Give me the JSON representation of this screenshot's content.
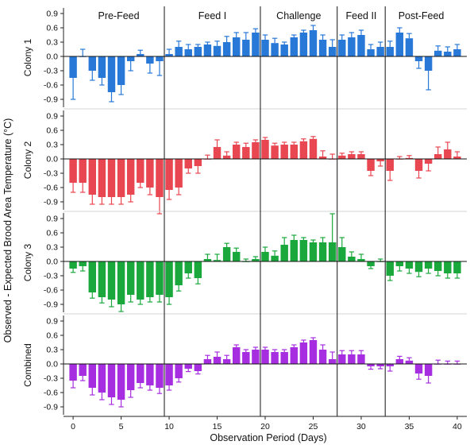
{
  "chart_data": {
    "type": "bar",
    "ylabel": "Observed - Expected Brood Area Temperature (°C)",
    "xlabel": "Observation Period (Days)",
    "xlim": [
      -1,
      41
    ],
    "ylim": [
      -1.1,
      1.05
    ],
    "yticks": [
      0.9,
      0.6,
      0.3,
      0.0,
      -0.3,
      -0.6,
      -0.9
    ],
    "ytick_labels": [
      "0.9",
      "0.6",
      "0.3",
      "0.0",
      "-0.3",
      "-0.6",
      "-0.9"
    ],
    "xticks": [
      0,
      5,
      10,
      15,
      20,
      25,
      30,
      35,
      40
    ],
    "xtick_labels": [
      "0",
      "5",
      "10",
      "15",
      "20",
      "25",
      "30",
      "35",
      "40"
    ],
    "phase_boundaries": [
      9.5,
      19.5,
      27.5,
      32.5
    ],
    "phases": [
      {
        "label": "Pre-Feed",
        "center": 4.75
      },
      {
        "label": "Feed I",
        "center": 14.5
      },
      {
        "label": "Challenge",
        "center": 23.5
      },
      {
        "label": "Feed II",
        "center": 30
      },
      {
        "label": "Post-Feed",
        "center": 36.25
      }
    ],
    "panels": [
      {
        "name": "Colony 1",
        "color": "#2878d8",
        "x": [
          0,
          1,
          2,
          3,
          4,
          5,
          6,
          7,
          8,
          9,
          10,
          11,
          12,
          13,
          14,
          15,
          16,
          17,
          18,
          19,
          20,
          21,
          22,
          23,
          24,
          25,
          26,
          27,
          28,
          29,
          30,
          31,
          32,
          33,
          34,
          35,
          36,
          37,
          38,
          39,
          40
        ],
        "values": [
          -0.45,
          0.0,
          -0.3,
          -0.45,
          -0.75,
          -0.6,
          -0.1,
          0.05,
          -0.15,
          -0.1,
          0.05,
          0.2,
          0.15,
          0.2,
          0.25,
          0.22,
          0.3,
          0.4,
          0.35,
          0.5,
          0.35,
          0.28,
          0.25,
          0.4,
          0.5,
          0.55,
          0.35,
          0.2,
          0.35,
          0.4,
          0.45,
          0.15,
          0.2,
          0.2,
          0.5,
          0.38,
          -0.1,
          -0.3,
          0.12,
          0.1,
          0.15
        ],
        "errors": [
          0.45,
          0.15,
          0.2,
          0.15,
          0.2,
          0.2,
          0.2,
          0.08,
          0.2,
          0.3,
          0.1,
          0.12,
          0.1,
          0.05,
          0.05,
          0.1,
          0.12,
          0.1,
          0.15,
          0.08,
          0.1,
          0.1,
          0.05,
          0.05,
          0.05,
          0.1,
          0.1,
          0.15,
          0.1,
          0.1,
          0.1,
          0.1,
          0.1,
          0.12,
          0.1,
          0.1,
          0.15,
          0.4,
          0.1,
          0.1,
          0.1
        ]
      },
      {
        "name": "Colony 2",
        "color": "#e84650",
        "x": [
          0,
          1,
          2,
          3,
          4,
          5,
          6,
          7,
          8,
          9,
          10,
          11,
          12,
          13,
          14,
          15,
          16,
          17,
          18,
          19,
          20,
          21,
          22,
          23,
          24,
          25,
          26,
          27,
          28,
          29,
          30,
          31,
          32,
          33,
          34,
          35,
          36,
          37,
          38,
          39,
          40
        ],
        "values": [
          -0.5,
          -0.5,
          -0.75,
          -0.8,
          -0.8,
          -0.8,
          -0.75,
          -0.5,
          -0.6,
          -0.8,
          -0.65,
          -0.6,
          -0.2,
          -0.15,
          0.0,
          0.25,
          0.07,
          0.3,
          0.25,
          0.35,
          0.4,
          0.28,
          0.3,
          0.3,
          0.37,
          0.42,
          0.05,
          0.0,
          0.07,
          0.1,
          0.1,
          -0.25,
          -0.05,
          -0.25,
          0.0,
          0.02,
          -0.25,
          -0.1,
          0.1,
          0.2,
          0.05
        ],
        "errors": [
          0.2,
          0.2,
          0.2,
          0.15,
          0.15,
          0.15,
          0.15,
          0.1,
          0.15,
          0.35,
          0.2,
          0.15,
          0.1,
          0.15,
          0.08,
          0.15,
          0.08,
          0.05,
          0.08,
          0.05,
          0.05,
          0.05,
          0.05,
          0.05,
          0.05,
          0.05,
          0.12,
          0.1,
          0.05,
          0.05,
          0.05,
          0.1,
          0.1,
          0.2,
          0.05,
          0.05,
          0.15,
          0.15,
          0.15,
          0.15,
          0.1
        ]
      },
      {
        "name": "Colony 3",
        "color": "#1aa83c",
        "x": [
          0,
          1,
          2,
          3,
          4,
          5,
          6,
          7,
          8,
          9,
          10,
          11,
          12,
          13,
          14,
          15,
          16,
          17,
          18,
          19,
          20,
          21,
          22,
          23,
          24,
          25,
          26,
          27,
          28,
          29,
          30,
          31,
          32,
          33,
          34,
          35,
          36,
          37,
          38,
          39,
          40
        ],
        "values": [
          -0.15,
          -0.1,
          -0.65,
          -0.75,
          -0.8,
          -0.9,
          -0.7,
          -0.8,
          -0.75,
          -0.7,
          -0.75,
          -0.5,
          -0.25,
          -0.35,
          0.05,
          0.03,
          0.3,
          0.2,
          0.0,
          0.05,
          0.2,
          0.12,
          0.35,
          0.45,
          0.45,
          0.4,
          0.4,
          0.4,
          0.3,
          0.1,
          0.05,
          -0.1,
          0.0,
          -0.3,
          -0.1,
          -0.15,
          -0.22,
          -0.15,
          -0.2,
          -0.25,
          -0.25
        ],
        "errors": [
          0.08,
          0.1,
          0.12,
          0.12,
          0.15,
          0.15,
          0.15,
          0.1,
          0.1,
          0.15,
          0.15,
          0.12,
          0.1,
          0.12,
          0.1,
          0.12,
          0.08,
          0.08,
          0.05,
          0.05,
          0.1,
          0.1,
          0.15,
          0.1,
          0.05,
          0.05,
          0.1,
          0.6,
          0.2,
          0.1,
          0.1,
          0.05,
          0.05,
          0.1,
          0.1,
          0.1,
          0.1,
          0.1,
          0.1,
          0.1,
          0.1
        ]
      },
      {
        "name": "Combined",
        "color": "#a62ee0",
        "x": [
          0,
          1,
          2,
          3,
          4,
          5,
          6,
          7,
          8,
          9,
          10,
          11,
          12,
          13,
          14,
          15,
          16,
          17,
          18,
          19,
          20,
          21,
          22,
          23,
          24,
          25,
          26,
          27,
          28,
          29,
          30,
          31,
          32,
          33,
          34,
          35,
          36,
          37,
          38,
          39,
          40
        ],
        "values": [
          -0.35,
          -0.25,
          -0.5,
          -0.6,
          -0.7,
          -0.75,
          -0.55,
          -0.4,
          -0.45,
          -0.5,
          -0.45,
          -0.3,
          -0.1,
          -0.15,
          0.1,
          0.15,
          0.1,
          0.35,
          0.25,
          0.3,
          0.3,
          0.25,
          0.25,
          0.35,
          0.45,
          0.5,
          0.3,
          0.1,
          0.2,
          0.2,
          0.2,
          -0.05,
          -0.05,
          -0.05,
          0.1,
          0.07,
          -0.2,
          -0.25,
          0.0,
          0.0,
          0.0
        ],
        "errors": [
          0.15,
          0.1,
          0.15,
          0.15,
          0.15,
          0.15,
          0.15,
          0.1,
          0.1,
          0.12,
          0.1,
          0.08,
          0.06,
          0.06,
          0.08,
          0.1,
          0.08,
          0.05,
          0.05,
          0.05,
          0.05,
          0.05,
          0.05,
          0.05,
          0.05,
          0.05,
          0.1,
          0.15,
          0.08,
          0.08,
          0.08,
          0.06,
          0.05,
          0.1,
          0.06,
          0.06,
          0.12,
          0.15,
          0.08,
          0.06,
          0.06
        ]
      }
    ]
  }
}
